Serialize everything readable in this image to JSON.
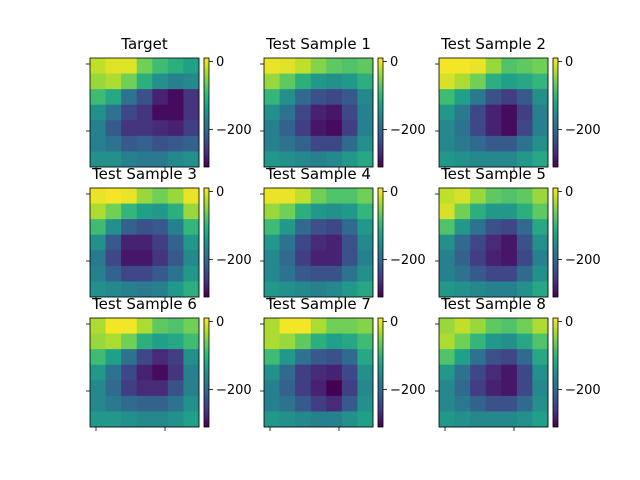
{
  "chart_data": {
    "type": "heatmap",
    "grid": false,
    "colormap": "viridis",
    "colormap_stops": [
      "#440154",
      "#482777",
      "#3e4989",
      "#31688e",
      "#26828e",
      "#1f9e89",
      "#35b779",
      "#6ece58",
      "#b5de2b",
      "#fde725"
    ],
    "vmin": -310,
    "vmax": 10,
    "colorbar_ticks": [
      0,
      -200
    ],
    "panels": [
      {
        "title": "Target",
        "values": [
          [
            -20,
            -5,
            -5,
            -60,
            -90,
            -110,
            -130
          ],
          [
            -40,
            -30,
            -60,
            -110,
            -150,
            -170,
            -160
          ],
          [
            -90,
            -120,
            -190,
            -230,
            -280,
            -300,
            -260
          ],
          [
            -150,
            -190,
            -240,
            -260,
            -300,
            -300,
            -260
          ],
          [
            -170,
            -220,
            -260,
            -260,
            -270,
            -280,
            -250
          ],
          [
            -170,
            -190,
            -220,
            -210,
            -230,
            -220,
            -210
          ],
          [
            -150,
            -150,
            -170,
            -180,
            -180,
            -160,
            -150
          ]
        ]
      },
      {
        "title": "Test Sample 1",
        "values": [
          [
            0,
            -5,
            -20,
            -50,
            -70,
            -80,
            -70
          ],
          [
            -40,
            -70,
            -110,
            -140,
            -150,
            -140,
            -110
          ],
          [
            -100,
            -150,
            -200,
            -230,
            -240,
            -220,
            -160
          ],
          [
            -150,
            -190,
            -240,
            -280,
            -290,
            -240,
            -170
          ],
          [
            -170,
            -210,
            -250,
            -290,
            -300,
            -250,
            -170
          ],
          [
            -170,
            -190,
            -210,
            -240,
            -240,
            -200,
            -150
          ],
          [
            -140,
            -150,
            -160,
            -170,
            -160,
            -140,
            -120
          ]
        ]
      },
      {
        "title": "Test Sample 2",
        "values": [
          [
            5,
            5,
            0,
            -40,
            -80,
            -70,
            -60
          ],
          [
            -10,
            -30,
            -60,
            -110,
            -130,
            -120,
            -100
          ],
          [
            -90,
            -130,
            -180,
            -230,
            -250,
            -220,
            -150
          ],
          [
            -140,
            -180,
            -240,
            -280,
            -300,
            -250,
            -170
          ],
          [
            -160,
            -190,
            -240,
            -280,
            -300,
            -240,
            -170
          ],
          [
            -160,
            -180,
            -200,
            -220,
            -220,
            -190,
            -150
          ],
          [
            -140,
            -150,
            -160,
            -160,
            -160,
            -140,
            -120
          ]
        ]
      },
      {
        "title": "Test Sample 3",
        "values": [
          [
            0,
            5,
            0,
            -40,
            -60,
            -40,
            0
          ],
          [
            -30,
            -60,
            -100,
            -130,
            -140,
            -110,
            -40
          ],
          [
            -90,
            -150,
            -210,
            -230,
            -220,
            -170,
            -100
          ],
          [
            -150,
            -220,
            -280,
            -280,
            -250,
            -210,
            -140
          ],
          [
            -180,
            -240,
            -290,
            -290,
            -260,
            -220,
            -160
          ],
          [
            -170,
            -210,
            -240,
            -240,
            -220,
            -190,
            -140
          ],
          [
            -150,
            -160,
            -170,
            -180,
            -170,
            -140,
            -110
          ]
        ]
      },
      {
        "title": "Test Sample 4",
        "values": [
          [
            0,
            0,
            -20,
            -60,
            -80,
            -80,
            -60
          ],
          [
            -40,
            -60,
            -110,
            -140,
            -150,
            -140,
            -100
          ],
          [
            -90,
            -140,
            -200,
            -230,
            -240,
            -200,
            -140
          ],
          [
            -140,
            -190,
            -240,
            -270,
            -280,
            -230,
            -160
          ],
          [
            -160,
            -200,
            -250,
            -280,
            -280,
            -230,
            -170
          ],
          [
            -160,
            -190,
            -220,
            -230,
            -230,
            -190,
            -150
          ],
          [
            -140,
            -150,
            -160,
            -170,
            -160,
            -140,
            -120
          ]
        ]
      },
      {
        "title": "Test Sample 5",
        "values": [
          [
            -20,
            -10,
            -40,
            -70,
            -80,
            -70,
            -40
          ],
          [
            -10,
            -60,
            -110,
            -140,
            -140,
            -110,
            -70
          ],
          [
            -80,
            -140,
            -190,
            -230,
            -240,
            -200,
            -120
          ],
          [
            -150,
            -200,
            -240,
            -270,
            -290,
            -230,
            -150
          ],
          [
            -170,
            -210,
            -250,
            -280,
            -290,
            -240,
            -170
          ],
          [
            -170,
            -190,
            -220,
            -240,
            -240,
            -200,
            -150
          ],
          [
            -140,
            -150,
            -160,
            -170,
            -170,
            -150,
            -120
          ]
        ]
      },
      {
        "title": "Test Sample 6",
        "values": [
          [
            -30,
            5,
            5,
            -30,
            -70,
            -80,
            -60
          ],
          [
            -40,
            -30,
            -60,
            -110,
            -130,
            -120,
            -90
          ],
          [
            -90,
            -130,
            -190,
            -240,
            -270,
            -250,
            -150
          ],
          [
            -140,
            -190,
            -240,
            -280,
            -300,
            -260,
            -170
          ],
          [
            -160,
            -200,
            -250,
            -270,
            -270,
            -230,
            -170
          ],
          [
            -160,
            -180,
            -200,
            -210,
            -210,
            -190,
            -150
          ],
          [
            -140,
            -140,
            -150,
            -160,
            -160,
            -150,
            -130
          ]
        ]
      },
      {
        "title": "Test Sample 7",
        "values": [
          [
            -30,
            5,
            5,
            -30,
            -60,
            -60,
            -50
          ],
          [
            -30,
            -40,
            -70,
            -110,
            -130,
            -120,
            -90
          ],
          [
            -90,
            -140,
            -190,
            -220,
            -230,
            -200,
            -120
          ],
          [
            -150,
            -200,
            -250,
            -270,
            -280,
            -240,
            -150
          ],
          [
            -170,
            -210,
            -250,
            -280,
            -310,
            -250,
            -160
          ],
          [
            -170,
            -190,
            -220,
            -250,
            -270,
            -220,
            -150
          ],
          [
            -140,
            -150,
            -160,
            -170,
            -170,
            -150,
            -130
          ]
        ]
      },
      {
        "title": "Test Sample 8",
        "values": [
          [
            -40,
            -20,
            -40,
            -70,
            -80,
            -60,
            -30
          ],
          [
            -30,
            -60,
            -100,
            -140,
            -150,
            -120,
            -80
          ],
          [
            -80,
            -130,
            -190,
            -230,
            -240,
            -200,
            -120
          ],
          [
            -140,
            -190,
            -240,
            -270,
            -290,
            -240,
            -150
          ],
          [
            -160,
            -200,
            -250,
            -280,
            -290,
            -240,
            -160
          ],
          [
            -160,
            -180,
            -210,
            -230,
            -230,
            -200,
            -150
          ],
          [
            -140,
            -150,
            -160,
            -160,
            -160,
            -150,
            -130
          ]
        ]
      }
    ]
  }
}
